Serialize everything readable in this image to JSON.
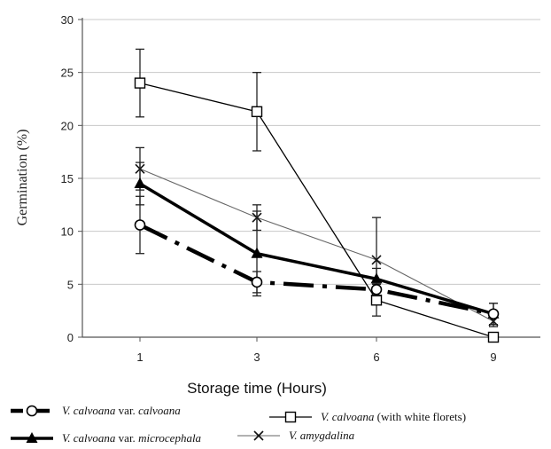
{
  "chart_data": {
    "type": "line",
    "xlabel": "Storage time (Hours)",
    "ylabel": "Germination (%)",
    "ylim": [
      0,
      30
    ],
    "yticks": [
      0,
      5,
      10,
      15,
      20,
      25,
      30
    ],
    "categories": [
      "1",
      "3",
      "6",
      "9"
    ],
    "grid": "horizontal",
    "legend_position": "bottom",
    "series": [
      {
        "key": "calvoana",
        "name": "V. calvoana var. calvoana",
        "name_parts": [
          {
            "text": "V. calvoana",
            "italic": true
          },
          {
            "text": " var. ",
            "italic": false
          },
          {
            "text": "calvoana",
            "italic": true
          }
        ],
        "values": [
          10.6,
          5.2,
          4.5,
          2.2
        ],
        "errors": [
          2.7,
          1.0,
          0.6,
          1.0
        ],
        "marker": "circle",
        "color": "#000000",
        "line_style": "dash-dot-thick"
      },
      {
        "key": "white",
        "name": "V. calvoana (with white florets)",
        "name_parts": [
          {
            "text": "V. calvoana",
            "italic": true
          },
          {
            "text": " (with white florets)",
            "italic": false
          }
        ],
        "values": [
          24.0,
          21.3,
          3.5,
          0.0
        ],
        "errors": [
          3.2,
          3.7,
          1.5,
          0.0
        ],
        "marker": "square",
        "color": "#000000",
        "line_style": "solid-thin"
      },
      {
        "key": "micro",
        "name": "V. calvoana var. microcephala",
        "name_parts": [
          {
            "text": "V. calvoana",
            "italic": true
          },
          {
            "text": " var. ",
            "italic": false
          },
          {
            "text": "microcephala",
            "italic": true
          }
        ],
        "values": [
          14.5,
          7.9,
          5.5,
          2.2
        ],
        "errors": [
          2.0,
          4.0,
          1.0,
          1.0
        ],
        "marker": "triangle",
        "color": "#000000",
        "line_style": "solid-thick"
      },
      {
        "key": "amyg",
        "name": "V. amygdalina",
        "name_parts": [
          {
            "text": "V. amygdalina",
            "italic": true
          }
        ],
        "values": [
          15.9,
          11.3,
          7.3,
          1.5
        ],
        "errors": [
          2.0,
          1.2,
          4.0,
          0.5
        ],
        "marker": "x",
        "color": "#666666",
        "line_style": "solid-thin-grey"
      }
    ]
  }
}
